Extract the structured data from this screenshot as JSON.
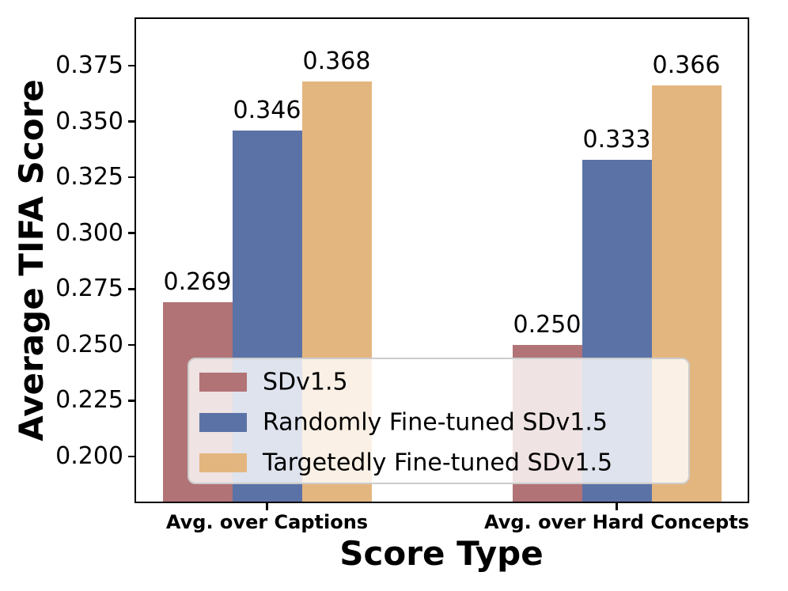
{
  "chart_data": {
    "type": "bar",
    "title": "",
    "xlabel": "Score Type",
    "ylabel": "Average TIFA Score",
    "categories": [
      "Avg. over Captions",
      "Avg. over Hard Concepts"
    ],
    "series": [
      {
        "name": "SDv1.5",
        "color": "#b17376",
        "values": [
          0.269,
          0.25
        ],
        "labels": [
          "0.269",
          "0.250"
        ]
      },
      {
        "name": "Randomly Fine-tuned SDv1.5",
        "color": "#5b72a6",
        "values": [
          0.346,
          0.333
        ],
        "labels": [
          "0.346",
          "0.333"
        ]
      },
      {
        "name": "Targetedly Fine-tuned SDv1.5",
        "color": "#e4b67f",
        "values": [
          0.368,
          0.366
        ],
        "labels": [
          "0.368",
          "0.366"
        ]
      }
    ],
    "yticks": [
      "0.200",
      "0.225",
      "0.250",
      "0.275",
      "0.300",
      "0.325",
      "0.350",
      "0.375"
    ],
    "ylim": [
      0.1791,
      0.3966
    ],
    "grid": false,
    "legend_position": "lower center",
    "axis_color": "#000000",
    "background_color": "#ffffff",
    "legend_border_color": "#cccccc"
  }
}
